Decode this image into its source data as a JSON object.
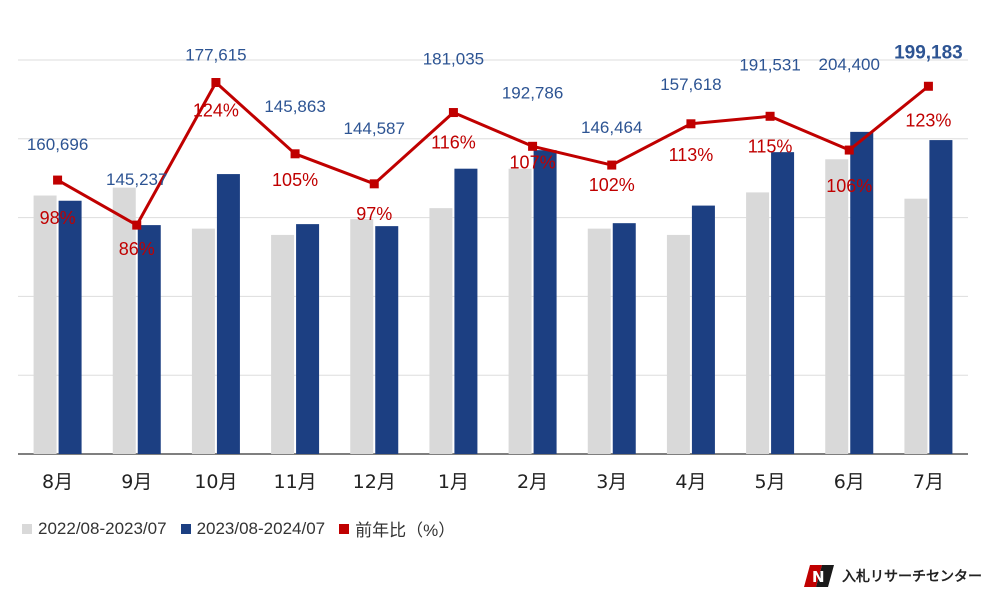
{
  "chart_data": {
    "type": "bar",
    "categories": [
      "8月",
      "9月",
      "10月",
      "11月",
      "12月",
      "1月",
      "2月",
      "3月",
      "4月",
      "5月",
      "6月",
      "7月"
    ],
    "series": [
      {
        "name": "2022/08-2023/07",
        "type": "bar",
        "values": [
          164000,
          169000,
          143000,
          139000,
          149000,
          156000,
          181000,
          143000,
          139000,
          166000,
          187000,
          162000
        ]
      },
      {
        "name": "2023/08-2024/07",
        "type": "bar",
        "values": [
          160696,
          145237,
          177615,
          145863,
          144587,
          181035,
          192786,
          146464,
          157618,
          191531,
          204400,
          199183
        ],
        "labels": [
          "160,696",
          "145,237",
          "177,615",
          "145,863",
          "144,587",
          "181,035",
          "192,786",
          "146,464",
          "157,618",
          "191,531",
          "204,400",
          "199,183"
        ]
      },
      {
        "name": "前年比（%）",
        "type": "line",
        "values": [
          98,
          86,
          124,
          105,
          97,
          116,
          107,
          102,
          113,
          115,
          106,
          123
        ],
        "labels": [
          "98%",
          "86%",
          "124%",
          "105%",
          "97%",
          "116%",
          "107%",
          "102%",
          "113%",
          "115%",
          "106%",
          "123%"
        ]
      }
    ],
    "ylim": [
      0,
      250000
    ],
    "ylim_line": [
      25,
      130
    ],
    "grid": true,
    "legend": "bottom-left",
    "colors": {
      "prev": "#d9d9d9",
      "curr": "#1c3f82",
      "line": "#c00000",
      "curr_label": "#2d5493",
      "line_label": "#c00000"
    }
  },
  "brand": {
    "name": "入札リサーチセンター"
  }
}
